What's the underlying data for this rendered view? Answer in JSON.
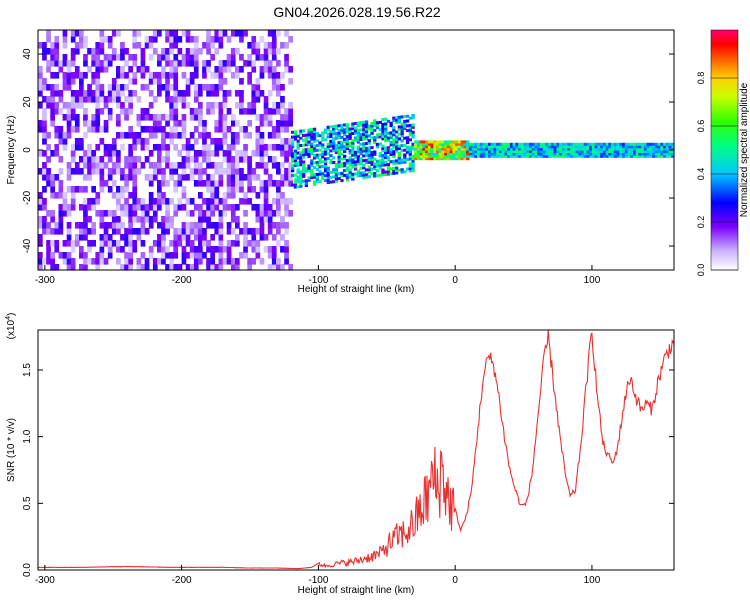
{
  "title": "GN04.2026.028.19.56.R22",
  "chart_data": [
    {
      "type": "heatmap",
      "xlabel": "Height of straight line (km)",
      "ylabel": "Frequency (Hz)",
      "xlim": [
        -305,
        160
      ],
      "ylim": [
        -50,
        50
      ],
      "x_ticks": [
        -300,
        -200,
        -100,
        0,
        100
      ],
      "x_tick_labels": [
        "-300",
        "-200",
        "-100",
        "0",
        "100"
      ],
      "y_ticks": [
        -40,
        -20,
        0,
        20,
        40
      ],
      "y_tick_labels": [
        "-40",
        "-20",
        "0",
        "20",
        "40"
      ],
      "colorbar": {
        "label": "Normalized spectral amplitude",
        "range": [
          0,
          1
        ],
        "ticks": [
          0,
          0.2,
          0.4,
          0.6,
          0.8
        ],
        "tick_labels": [
          "0.0",
          "0.2",
          "0.4",
          "0.6",
          "0.8"
        ]
      },
      "regions": [
        {
          "x": [
            -305,
            -120
          ],
          "y": [
            -50,
            50
          ],
          "amplitude": [
            0.05,
            0.25
          ]
        },
        {
          "x": [
            -120,
            -30
          ],
          "y": [
            -12,
            12
          ],
          "amplitude": [
            0.2,
            0.6
          ]
        },
        {
          "x": [
            -30,
            10
          ],
          "y": [
            -4,
            4
          ],
          "amplitude": [
            0.4,
            0.95
          ]
        },
        {
          "x": [
            10,
            160
          ],
          "y": [
            -3,
            3
          ],
          "amplitude": [
            0.3,
            0.55
          ]
        }
      ]
    },
    {
      "type": "line",
      "xlabel": "Height of straight line (km)",
      "ylabel": "SNR (10 * v/v)",
      "y_multiplier_label": "(x10",
      "y_multiplier_exp": "4",
      "y_multiplier_close": ")",
      "xlim": [
        -305,
        160
      ],
      "ylim": [
        0,
        1.8
      ],
      "x_ticks": [
        -300,
        -200,
        -100,
        0,
        100
      ],
      "x_tick_labels": [
        "-300",
        "-200",
        "-100",
        "0",
        "100"
      ],
      "y_ticks": [
        0,
        0.5,
        1.0,
        1.5
      ],
      "y_tick_labels": [
        "0.0",
        "0.5",
        "1.0",
        "1.5"
      ],
      "color": "#e8312f",
      "series": [
        {
          "x": [
            -305,
            -290,
            -270,
            -250,
            -230,
            -210,
            -190,
            -170,
            -150,
            -130,
            -115,
            -105,
            -100,
            -95,
            -85,
            -75,
            -65,
            -55,
            -48,
            -42,
            -36,
            -30,
            -25,
            -20,
            -16,
            -13,
            -10,
            -7,
            -4,
            0,
            4,
            8,
            12,
            16,
            20,
            24,
            28,
            32,
            36,
            40,
            44,
            48,
            52,
            56,
            60,
            64,
            68,
            72,
            76,
            80,
            84,
            88,
            92,
            96,
            100,
            104,
            108,
            112,
            116,
            120,
            124,
            128,
            132,
            136,
            140,
            144,
            148,
            152,
            156,
            160
          ],
          "y": [
            0.02,
            0.02,
            0.02,
            0.025,
            0.025,
            0.02,
            0.02,
            0.02,
            0.015,
            0.015,
            0.01,
            0.02,
            0.05,
            0.03,
            0.05,
            0.06,
            0.09,
            0.12,
            0.2,
            0.25,
            0.28,
            0.35,
            0.45,
            0.55,
            0.7,
            0.6,
            0.75,
            0.62,
            0.5,
            0.45,
            0.3,
            0.4,
            0.6,
            1.0,
            1.4,
            1.6,
            1.55,
            1.3,
            1.0,
            0.75,
            0.6,
            0.48,
            0.5,
            0.7,
            1.1,
            1.5,
            1.75,
            1.4,
            1.05,
            0.75,
            0.55,
            0.6,
            0.95,
            1.4,
            1.8,
            1.3,
            0.95,
            0.85,
            0.8,
            1.0,
            1.28,
            1.45,
            1.3,
            1.2,
            1.25,
            1.2,
            1.4,
            1.55,
            1.65,
            1.72
          ]
        }
      ]
    }
  ]
}
